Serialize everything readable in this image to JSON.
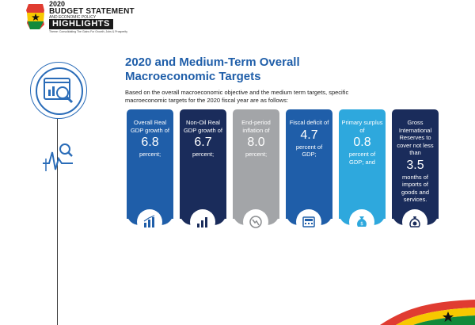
{
  "header": {
    "year": "2020",
    "line1": "BUDGET STATEMENT",
    "line2": "AND ECONOMIC POLICY",
    "highlights": "HIGHLIGHTS",
    "theme": "Theme: Consolidating The Gains For Growth, Jobs & Prosperity"
  },
  "section": {
    "title_line1": "2020 and Medium-Term Overall",
    "title_line2": "Macroeconomic Targets",
    "intro": "Based on the overall macroeconomic objective and the medium term targets, specific macroeconomic targets for the 2020 fiscal year are as follows:"
  },
  "cards": [
    {
      "label": "Overall Real GDP growth of",
      "value": "6.8",
      "suffix": "percent;",
      "color": "#1f5ea9",
      "icon": "bar-chart-icon"
    },
    {
      "label": "Non-Oil Real GDP growth of",
      "value": "6.7",
      "suffix": "percent;",
      "color": "#1a2c5b",
      "icon": "growth-bars-icon"
    },
    {
      "label": "End-period inflation of",
      "value": "8.0",
      "suffix": "percent;",
      "color": "#a3a5a8",
      "icon": "inflation-icon"
    },
    {
      "label": "Fiscal deficit of",
      "value": "4.7",
      "suffix": "percent of GDP;",
      "color": "#1f5ea9",
      "icon": "calculator-icon"
    },
    {
      "label": "Primary surplus of",
      "value": "0.8",
      "suffix": "percent of GDP; and",
      "color": "#2ea8dd",
      "icon": "money-bag-icon"
    },
    {
      "label": "Gross International Reserves to cover not less than",
      "value": "3.5",
      "suffix": "months of imports of goods and services.",
      "color": "#1a2c5b",
      "icon": "money-sack-icon"
    }
  ],
  "colors": {
    "accent": "#1f5ea9",
    "navy": "#1a2c5b",
    "grey": "#a3a5a8",
    "sky": "#2ea8dd"
  }
}
